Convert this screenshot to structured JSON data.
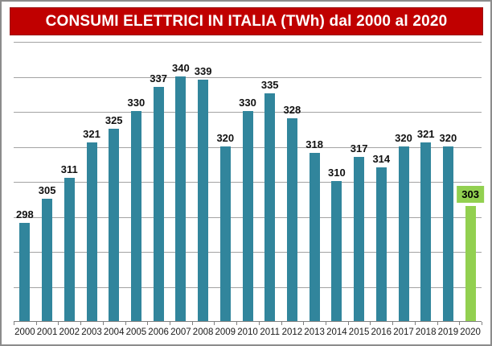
{
  "header": {
    "title": "CONSUMI ELETTRICI IN ITALIA (TWh) dal 2000 al 2020",
    "bg_color": "#C00000",
    "text_color": "#FFFFFF"
  },
  "chart_data": {
    "type": "bar",
    "title": "CONSUMI ELETTRICI IN ITALIA (TWh) dal 2000 al 2020",
    "categories": [
      "2000",
      "2001",
      "2002",
      "2003",
      "2004",
      "2005",
      "2006",
      "2007",
      "2008",
      "2009",
      "2010",
      "2011",
      "2012",
      "2013",
      "2014",
      "2015",
      "2016",
      "2017",
      "2018",
      "2019",
      "2020"
    ],
    "values": [
      298,
      305,
      311,
      321,
      325,
      330,
      337,
      340,
      339,
      320,
      330,
      335,
      328,
      318,
      310,
      317,
      314,
      320,
      321,
      320,
      303
    ],
    "xlabel": "",
    "ylabel": "",
    "ylim": [
      270,
      350
    ],
    "grid_step": 10,
    "grid": true,
    "legend_position": "none",
    "data_labels": true,
    "bar_color": "#31859C",
    "highlight_index": 20,
    "highlight_color": "#92D050",
    "gridline_color": "#A3A3A3",
    "axis_color": "#808080"
  }
}
